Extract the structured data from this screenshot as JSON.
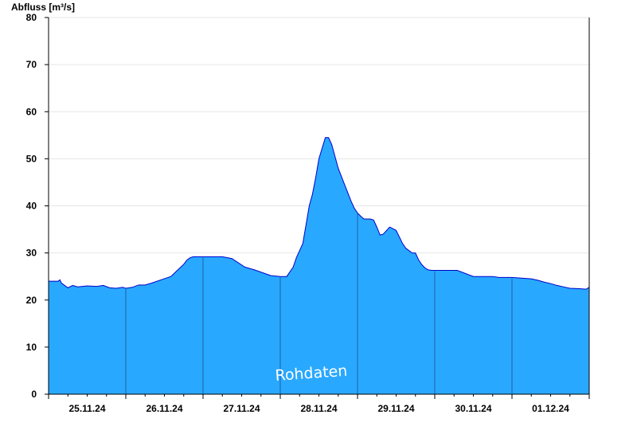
{
  "chart_data": {
    "type": "area",
    "ylabel": "Abfluss [m³/s]",
    "ylim": [
      0,
      80
    ],
    "yticks": [
      0,
      10,
      20,
      30,
      40,
      50,
      60,
      70,
      80
    ],
    "xlim": [
      "2024-11-25T00:00",
      "2024-12-02T00:00"
    ],
    "xtick_labels": [
      "25.11.24",
      "26.11.24",
      "27.11.24",
      "28.11.24",
      "29.11.24",
      "30.11.24",
      "01.12.24"
    ],
    "watermark": "Rohdaten",
    "grid": true,
    "colors": {
      "fill": "#29a8ff",
      "line": "#0000cc",
      "grid": "#e6e6e6",
      "day_separator": "#1f5fa8"
    },
    "series": [
      {
        "x": [
          "2024-11-25T00:00",
          "2024-11-25T03:00",
          "2024-11-25T03:30",
          "2024-11-25T04:00",
          "2024-11-25T06:00",
          "2024-11-25T07:30",
          "2024-11-25T09:00",
          "2024-11-25T12:00",
          "2024-11-25T15:00",
          "2024-11-25T17:00",
          "2024-11-25T19:00",
          "2024-11-25T21:00",
          "2024-11-25T23:00",
          "2024-11-26T00:00",
          "2024-11-26T02:00",
          "2024-11-26T04:00",
          "2024-11-26T06:00",
          "2024-11-26T08:00",
          "2024-11-26T11:00",
          "2024-11-26T14:00",
          "2024-11-26T16:00",
          "2024-11-26T18:00",
          "2024-11-26T19:00",
          "2024-11-26T20:00",
          "2024-11-26T21:00",
          "2024-11-26T22:00",
          "2024-11-26T23:00",
          "2024-11-27T00:00",
          "2024-11-27T03:00",
          "2024-11-27T06:00",
          "2024-11-27T09:00",
          "2024-11-27T13:00",
          "2024-11-27T16:00",
          "2024-11-27T21:00",
          "2024-11-28T00:00",
          "2024-11-28T02:00",
          "2024-11-28T04:00",
          "2024-11-28T05:00",
          "2024-11-28T06:00",
          "2024-11-28T07:00",
          "2024-11-28T08:00",
          "2024-11-28T09:00",
          "2024-11-28T10:00",
          "2024-11-28T11:00",
          "2024-11-28T12:00",
          "2024-11-28T14:00",
          "2024-11-28T15:00",
          "2024-11-28T16:00",
          "2024-11-28T17:00",
          "2024-11-28T18:00",
          "2024-11-28T20:00",
          "2024-11-28T22:00",
          "2024-11-28T23:00",
          "2024-11-29T00:00",
          "2024-11-29T01:00",
          "2024-11-29T02:00",
          "2024-11-29T03:00",
          "2024-11-29T04:00",
          "2024-11-29T05:00",
          "2024-11-29T06:00",
          "2024-11-29T07:00",
          "2024-11-29T08:00",
          "2024-11-29T10:00",
          "2024-11-29T12:00",
          "2024-11-29T14:00",
          "2024-11-29T15:00",
          "2024-11-29T16:00",
          "2024-11-29T17:00",
          "2024-11-29T18:00",
          "2024-11-29T19:00",
          "2024-11-29T20:00",
          "2024-11-29T21:00",
          "2024-11-29T22:00",
          "2024-11-29T23:00",
          "2024-11-30T00:00",
          "2024-11-30T03:00",
          "2024-11-30T06:00",
          "2024-11-30T07:00",
          "2024-11-30T12:00",
          "2024-11-30T18:00",
          "2024-11-30T20:00",
          "2024-12-01T00:00",
          "2024-12-01T06:00",
          "2024-12-01T08:00",
          "2024-12-01T10:00",
          "2024-12-01T12:00",
          "2024-12-01T14:00",
          "2024-12-01T16:00",
          "2024-12-01T18:00",
          "2024-12-01T21:00",
          "2024-12-01T23:00",
          "2024-12-02T00:00"
        ],
        "values": [
          24.0,
          24.0,
          24.3,
          23.6,
          22.6,
          23.1,
          22.8,
          23.0,
          22.9,
          23.1,
          22.6,
          22.5,
          22.7,
          22.5,
          22.7,
          23.2,
          23.2,
          23.6,
          24.3,
          25.0,
          26.3,
          27.6,
          28.5,
          29.0,
          29.2,
          29.2,
          29.2,
          29.2,
          29.2,
          29.2,
          28.8,
          27.0,
          26.4,
          25.2,
          25.0,
          25.0,
          27.0,
          29.0,
          30.5,
          32.0,
          36.0,
          40.0,
          42.5,
          46.0,
          50.0,
          54.5,
          54.5,
          53.0,
          50.5,
          48.0,
          44.5,
          41.0,
          39.5,
          38.5,
          37.8,
          37.2,
          37.2,
          37.2,
          37.0,
          35.5,
          33.8,
          34.0,
          35.5,
          34.8,
          32.0,
          31.0,
          30.5,
          30.0,
          30.0,
          28.5,
          27.5,
          26.8,
          26.4,
          26.3,
          26.3,
          26.3,
          26.3,
          26.3,
          25.0,
          25.0,
          24.8,
          24.8,
          24.5,
          24.2,
          23.8,
          23.5,
          23.1,
          22.8,
          22.5,
          22.4,
          22.3,
          22.7
        ]
      }
    ]
  }
}
